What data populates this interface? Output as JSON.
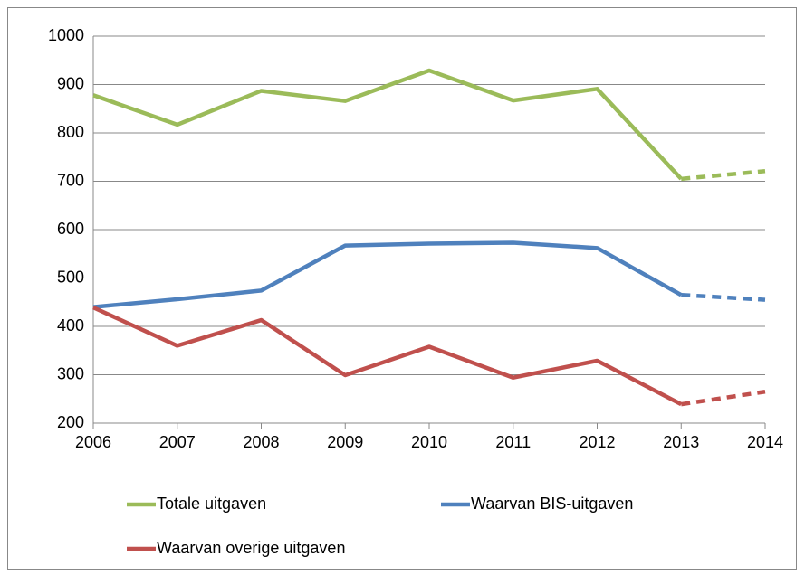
{
  "chart_data": {
    "type": "line",
    "x": [
      2006,
      2007,
      2008,
      2009,
      2010,
      2011,
      2012,
      2013,
      2014
    ],
    "series": [
      {
        "name": "Totale uitgaven",
        "color": "#9bbb59",
        "values": [
          878,
          817,
          887,
          866,
          929,
          867,
          891,
          705,
          721
        ]
      },
      {
        "name": "Waarvan BIS-uitgaven",
        "color": "#4f81bd",
        "values": [
          440,
          456,
          474,
          567,
          571,
          573,
          562,
          465,
          455
        ]
      },
      {
        "name": "Waarvan overige uitgaven",
        "color": "#c0504d",
        "values": [
          439,
          360,
          413,
          299,
          358,
          294,
          329,
          239,
          265
        ]
      }
    ],
    "xlim": [
      2006,
      2014
    ],
    "xticks": [
      2006,
      2007,
      2008,
      2009,
      2010,
      2011,
      2012,
      2013,
      2014
    ],
    "ylim": [
      200,
      1000
    ],
    "yticks": [
      200,
      300,
      400,
      500,
      600,
      700,
      800,
      900,
      1000
    ],
    "grid": true,
    "dashed_from": 2013,
    "legend": "bottom"
  }
}
